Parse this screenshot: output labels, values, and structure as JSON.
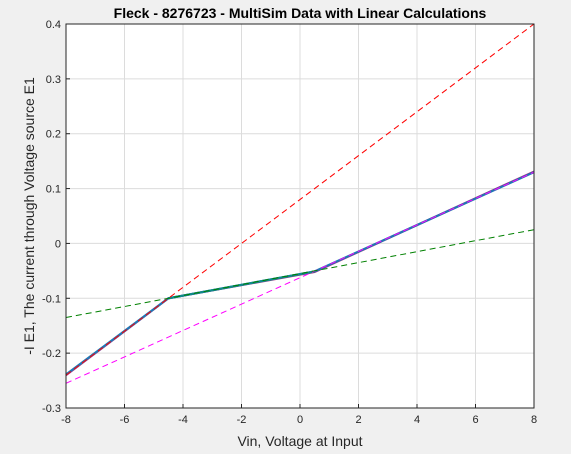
{
  "chart_data": {
    "type": "line",
    "title": "Fleck - 8276723 - MultiSim Data with Linear Calculations",
    "xlabel": "Vin, Voltage at Input",
    "ylabel": "-I E1, The current through Voltage source E1",
    "xlim": [
      -8,
      8
    ],
    "ylim": [
      -0.3,
      0.4
    ],
    "xticks": [
      -8,
      -6,
      -4,
      -2,
      0,
      2,
      4,
      6,
      8
    ],
    "yticks": [
      -0.3,
      -0.2,
      -0.1,
      0,
      0.1,
      0.2,
      0.3,
      0.4
    ],
    "xtick_labels": [
      "-8",
      "-6",
      "-4",
      "-2",
      "0",
      "2",
      "4",
      "6",
      "8"
    ],
    "ytick_labels": [
      "-0.3",
      "-0.2",
      "-0.1",
      "0",
      "0.1",
      "0.2",
      "0.3",
      "0.4"
    ],
    "grid": true,
    "series": [
      {
        "color": "#b52a7a",
        "style": "solid",
        "x": [
          -8,
          -4.5,
          0.5,
          8
        ],
        "y": [
          -0.24,
          -0.1,
          -0.052,
          0.131
        ]
      },
      {
        "color": "#1f77b4",
        "style": "solid",
        "x": [
          -8,
          -4.5,
          0.5,
          8
        ],
        "y": [
          -0.239,
          -0.1,
          -0.051,
          0.13
        ]
      },
      {
        "color": "#0f8a8a",
        "style": "solid",
        "x": [
          -4.5,
          0.5
        ],
        "y": [
          -0.1,
          -0.051
        ]
      },
      {
        "color": "#ff0000",
        "style": "dashed",
        "x": [
          -8,
          8
        ],
        "y": [
          -0.24,
          0.4
        ]
      },
      {
        "color": "#ff00ff",
        "style": "dashed",
        "x": [
          -8,
          8
        ],
        "y": [
          -0.255,
          0.13
        ]
      },
      {
        "color": "#008000",
        "style": "dashed",
        "x": [
          -8,
          8
        ],
        "y": [
          -0.135,
          0.025
        ]
      }
    ]
  }
}
